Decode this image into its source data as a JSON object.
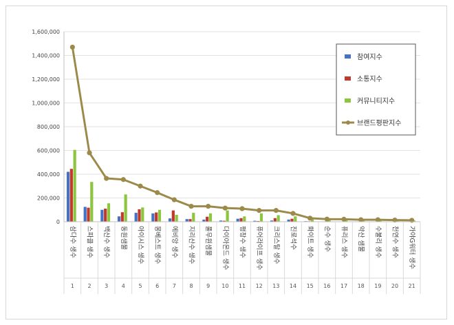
{
  "chart_data": {
    "type": "bar",
    "categories": [
      "삼다수 생수",
      "스파클 생수",
      "백산수 생수",
      "동원샘물",
      "아이시스 생수",
      "몽베스트 생수",
      "에비앙 생수",
      "지리산수 생수",
      "풀무원샘물",
      "다이아몬드 생수",
      "평창수 생수",
      "퓨어라이프 생수",
      "크리스탈 생수",
      "진로석수",
      "화이트 생수",
      "순수 생수",
      "퓨리스 생수",
      "약산 샘물",
      "수불리 생수",
      "천연수 생수",
      "가야G워터 생수"
    ],
    "ranks": [
      "1",
      "2",
      "3",
      "4",
      "5",
      "6",
      "7",
      "8",
      "9",
      "10",
      "11",
      "12",
      "13",
      "14",
      "15",
      "16",
      "17",
      "18",
      "19",
      "20",
      "21"
    ],
    "ylim": [
      0,
      1600000
    ],
    "yticks": [
      "0",
      "200,000",
      "400,000",
      "600,000",
      "800,000",
      "1,000,000",
      "1,200,000",
      "1,400,000",
      "1,600,000"
    ],
    "ytick_values": [
      0,
      200000,
      400000,
      600000,
      800000,
      1000000,
      1200000,
      1400000,
      1600000
    ],
    "grid": true,
    "legend_position": "top-right",
    "series": [
      {
        "name": "참여지수",
        "kind": "bar",
        "color": "#4472c4",
        "values": [
          420000,
          125000,
          100000,
          45000,
          75000,
          70000,
          28000,
          22000,
          18000,
          10000,
          25000,
          8000,
          10000,
          18000,
          5000,
          3000,
          3000,
          2000,
          2000,
          2000,
          1000
        ]
      },
      {
        "name": "소통지수",
        "kind": "bar",
        "color": "#c0392b",
        "values": [
          445000,
          118000,
          110000,
          80000,
          105000,
          78000,
          95000,
          22000,
          42000,
          8000,
          30000,
          6000,
          30000,
          25000,
          4000,
          4000,
          3000,
          2000,
          2000,
          2000,
          1500
        ]
      },
      {
        "name": "커뮤니티지수",
        "kind": "bar",
        "color": "#8cc63f",
        "values": [
          605000,
          335000,
          155000,
          230000,
          120000,
          100000,
          58000,
          75000,
          70000,
          95000,
          45000,
          70000,
          55000,
          45000,
          25000,
          15000,
          15000,
          10000,
          15000,
          10000,
          10000
        ]
      },
      {
        "name": "브랜드평판지수",
        "kind": "line",
        "color": "#9c8a4a",
        "values": [
          1470000,
          580000,
          365000,
          355000,
          300000,
          245000,
          185000,
          130000,
          130000,
          115000,
          110000,
          95000,
          95000,
          70000,
          30000,
          22000,
          21000,
          17000,
          17000,
          14000,
          12000
        ]
      }
    ]
  }
}
